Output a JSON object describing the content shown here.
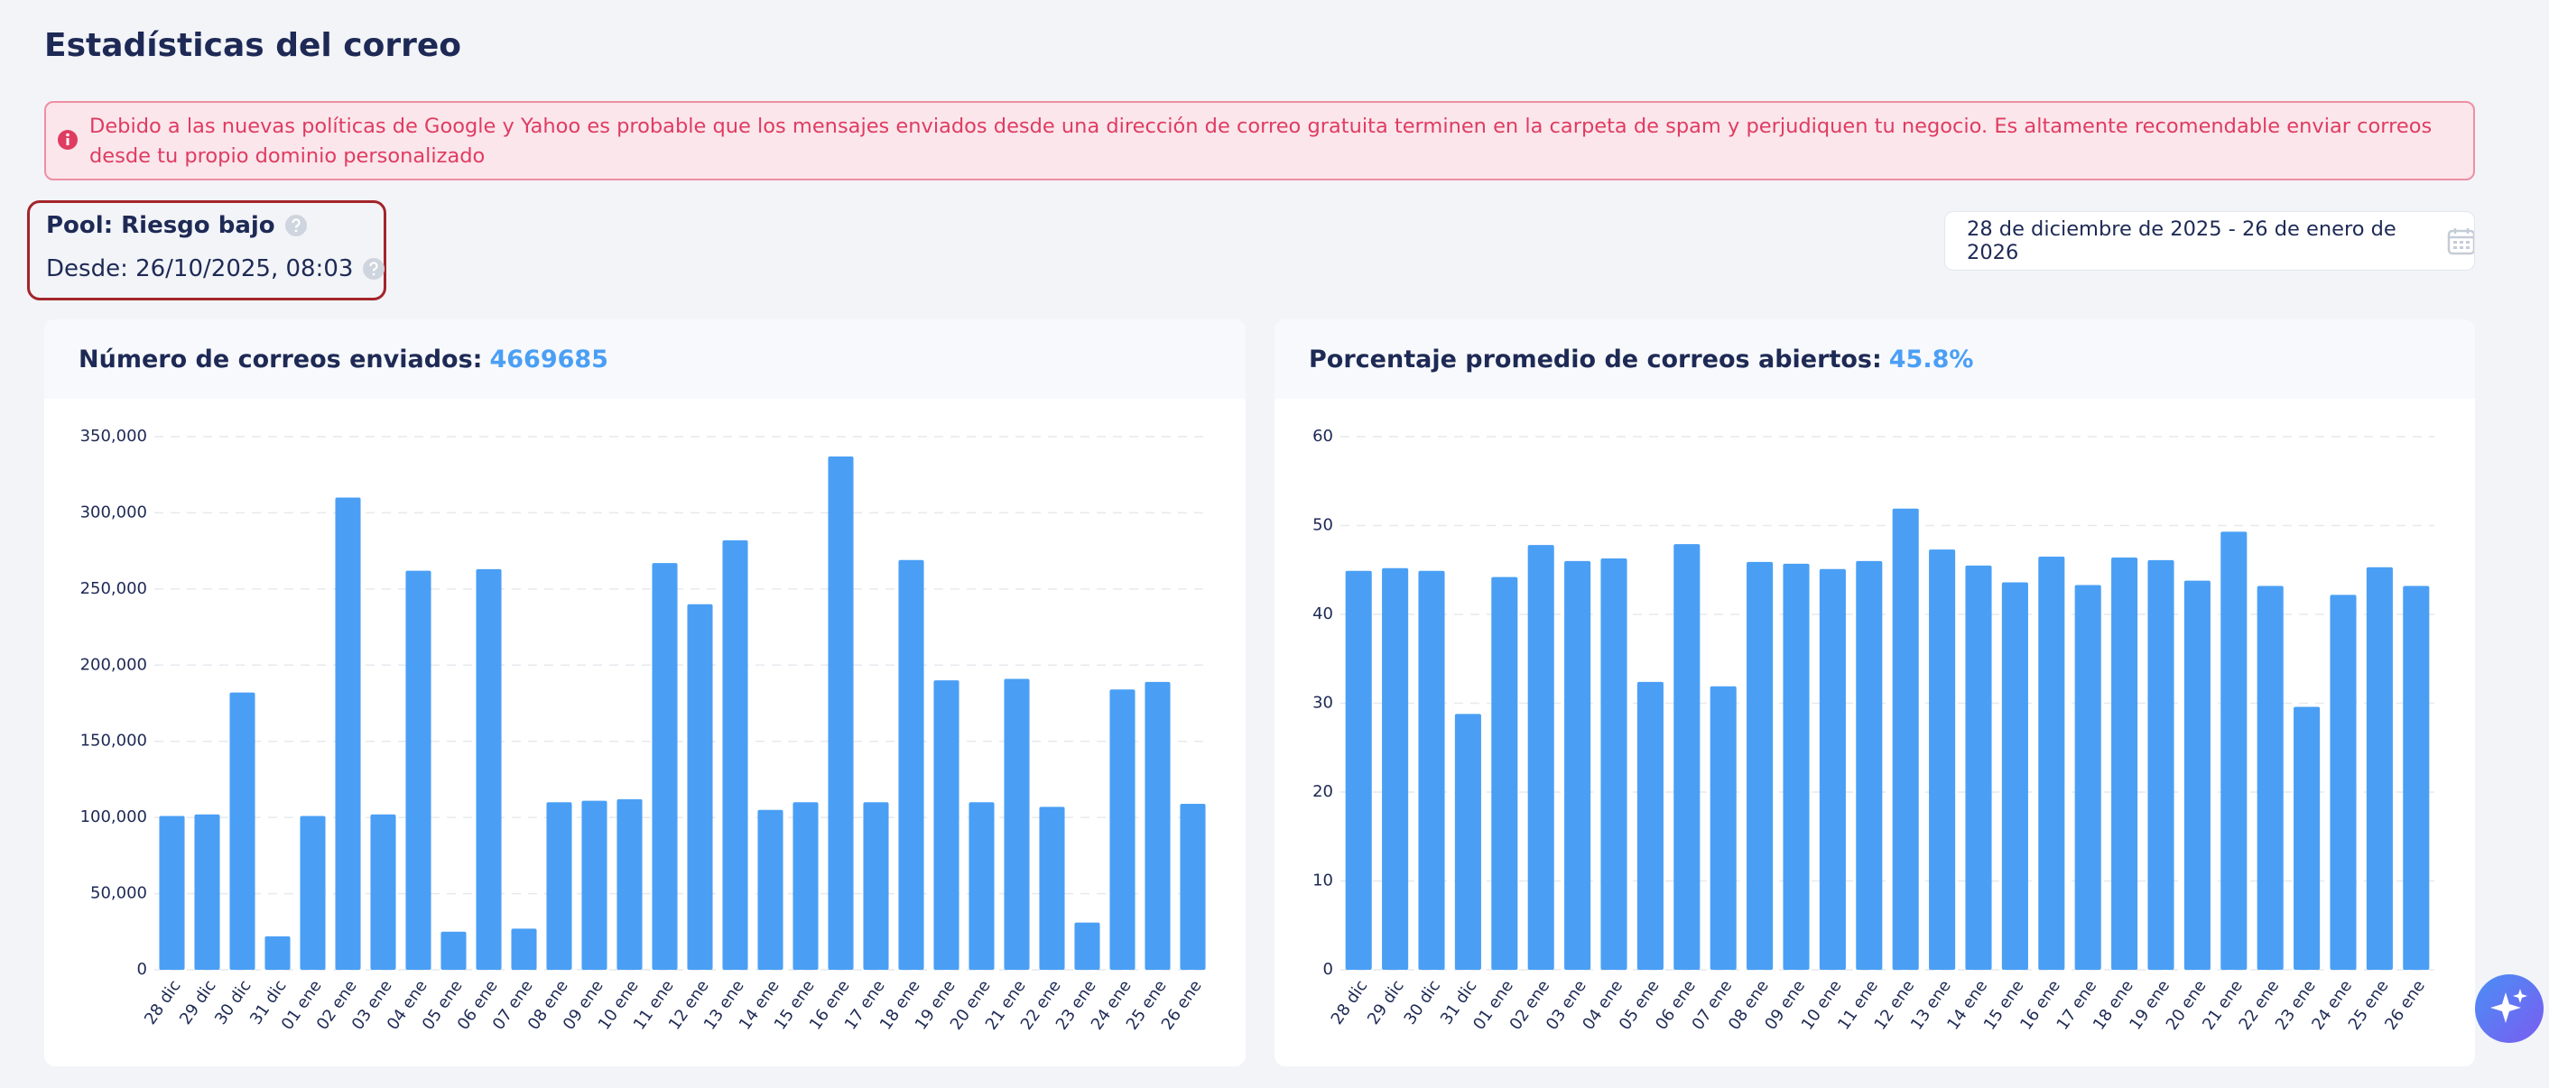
{
  "header": {
    "title": "Estadísticas del correo"
  },
  "alert": {
    "text": "Debido a las nuevas políticas de Google y Yahoo es probable que los mensajes enviados desde una dirección de correo gratuita terminen en la carpeta de spam y perjudiquen tu negocio. Es altamente recomendable enviar correos desde tu propio dominio personalizado"
  },
  "pool": {
    "label": "Pool: Riesgo bajo",
    "since": "Desde: 26/10/2025, 08:03"
  },
  "date_range": "28 de diciembre de 2025 - 26 de enero de 2026",
  "chart_data": [
    {
      "type": "bar",
      "title": "Número de correos enviados:",
      "highlight": "4669685",
      "categories": [
        "28 dic",
        "29 dic",
        "30 dic",
        "31 dic",
        "01 ene",
        "02 ene",
        "03 ene",
        "04 ene",
        "05 ene",
        "06 ene",
        "07 ene",
        "08 ene",
        "09 ene",
        "10 ene",
        "11 ene",
        "12 ene",
        "13 ene",
        "14 ene",
        "15 ene",
        "16 ene",
        "17 ene",
        "18 ene",
        "19 ene",
        "20 ene",
        "21 ene",
        "22 ene",
        "23 ene",
        "24 ene",
        "25 ene",
        "26 ene"
      ],
      "values": [
        101000,
        102000,
        182000,
        22000,
        101000,
        310000,
        102000,
        262000,
        25000,
        263000,
        27000,
        110000,
        111000,
        112000,
        267000,
        240000,
        282000,
        105000,
        110000,
        337000,
        110000,
        269000,
        190000,
        110000,
        191000,
        107000,
        31000,
        184000,
        189000,
        109000
      ],
      "color": "#4a9ff5",
      "ylim": [
        0,
        350000
      ],
      "yticks": [
        0,
        {
          "value": 50000,
          "label": "50,000"
        },
        {
          "value": 100000,
          "label": "100,000"
        },
        {
          "value": 150000,
          "label": "150,000"
        },
        {
          "value": 200000,
          "label": "200,000"
        },
        {
          "value": 250000,
          "label": "250,000"
        },
        {
          "value": 300000,
          "label": "300,000"
        },
        {
          "value": 350000,
          "label": "350,000"
        }
      ],
      "grid": true
    },
    {
      "type": "bar",
      "title": "Porcentaje promedio de correos abiertos:",
      "highlight": "45.8%",
      "categories": [
        "28 dic",
        "29 dic",
        "30 dic",
        "31 dic",
        "01 ene",
        "02 ene",
        "03 ene",
        "04 ene",
        "05 ene",
        "06 ene",
        "07 ene",
        "08 ene",
        "09 ene",
        "10 ene",
        "11 ene",
        "12 ene",
        "13 ene",
        "14 ene",
        "15 ene",
        "16 ene",
        "17 ene",
        "18 ene",
        "19 ene",
        "20 ene",
        "21 ene",
        "22 ene",
        "23 ene",
        "24 ene",
        "25 ene",
        "26 ene"
      ],
      "values": [
        44.9,
        45.2,
        44.9,
        28.8,
        44.2,
        47.8,
        46.0,
        46.3,
        32.4,
        47.9,
        31.9,
        45.9,
        45.7,
        45.1,
        46.0,
        51.9,
        47.3,
        45.5,
        43.6,
        46.5,
        43.3,
        46.4,
        46.1,
        43.8,
        49.3,
        43.2,
        29.6,
        42.2,
        45.3,
        43.2
      ],
      "color": "#4a9ff5",
      "ylim": [
        0,
        60
      ],
      "yticks": [
        0,
        10,
        20,
        30,
        40,
        50,
        60
      ],
      "grid": true
    }
  ]
}
